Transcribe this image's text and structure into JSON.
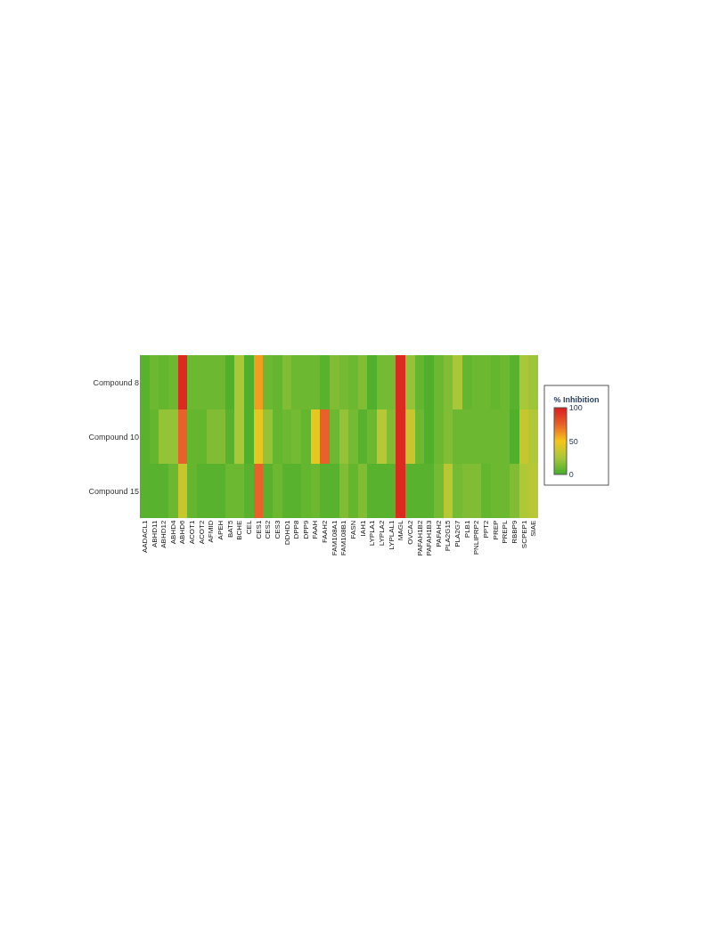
{
  "chart_data": {
    "type": "heatmap",
    "clabel": "% Inhibition",
    "clim": [
      0,
      100
    ],
    "cticks": [
      0,
      50,
      100
    ],
    "categories": [
      "AADACL1",
      "ABHD11",
      "ABHD12",
      "ABHD4",
      "ABHD6",
      "ACOT1",
      "ACOT2",
      "AFMID",
      "APEH",
      "BAT5",
      "BCHE",
      "CEL",
      "CES1",
      "CES2",
      "CES3",
      "DDHD1",
      "DPP8",
      "DPP9",
      "FAAH",
      "FAAH2",
      "FAM108A1",
      "FAM108B1",
      "FASN",
      "IAH1",
      "LYPLA1",
      "LYPLA2",
      "LYPLAL1",
      "MAGL",
      "OVCA2",
      "PAFAH1B2",
      "PAFAH1B3",
      "PAFAH2",
      "PLA2G15",
      "PLA2G7",
      "PLB1",
      "PNLIPRP2",
      "PPT2",
      "PREP",
      "PREPL",
      "RBBP9",
      "SCPEP1",
      "SIAE"
    ],
    "y_categories": [
      "Compound 8",
      "Compound 10",
      "Compound 15"
    ],
    "cells": [
      [
        5,
        10,
        8,
        10,
        95,
        10,
        10,
        10,
        10,
        3,
        25,
        3,
        60,
        10,
        8,
        15,
        10,
        10,
        10,
        5,
        15,
        12,
        10,
        15,
        3,
        12,
        12,
        95,
        20,
        8,
        3,
        10,
        15,
        25,
        8,
        10,
        10,
        8,
        10,
        5,
        25,
        22
      ],
      [
        5,
        8,
        20,
        20,
        75,
        8,
        8,
        15,
        15,
        5,
        25,
        3,
        45,
        20,
        8,
        10,
        12,
        8,
        45,
        75,
        10,
        20,
        12,
        5,
        10,
        30,
        15,
        95,
        35,
        10,
        3,
        10,
        15,
        10,
        10,
        10,
        10,
        10,
        10,
        3,
        35,
        28
      ],
      [
        5,
        5,
        5,
        10,
        35,
        8,
        5,
        5,
        5,
        10,
        10,
        5,
        75,
        5,
        10,
        5,
        5,
        8,
        10,
        5,
        5,
        15,
        8,
        15,
        5,
        5,
        5,
        95,
        5,
        5,
        5,
        12,
        30,
        12,
        15,
        15,
        8,
        10,
        10,
        15,
        28,
        30
      ]
    ]
  }
}
